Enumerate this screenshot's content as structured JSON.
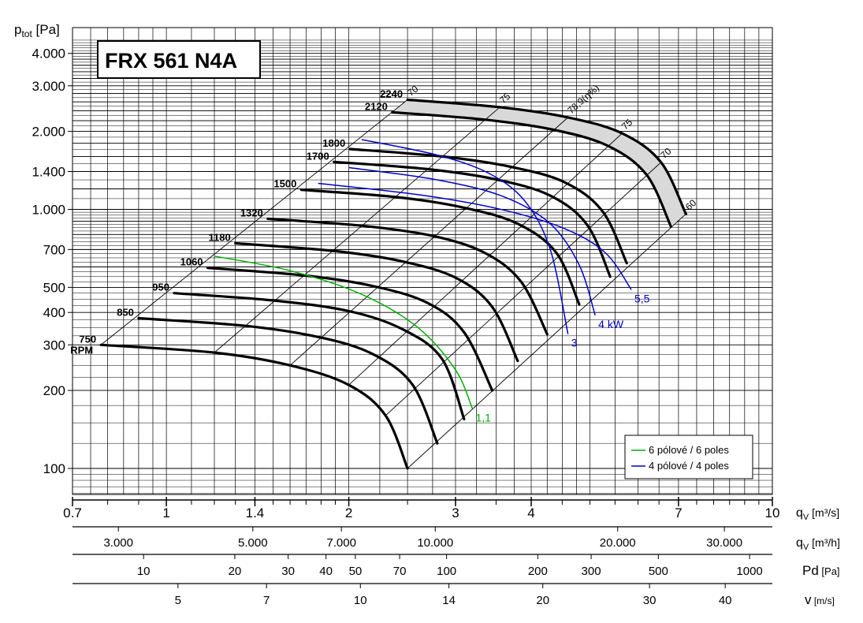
{
  "chart_data": {
    "type": "line",
    "title": "FRX 561 N4A",
    "y_axis": {
      "label_main": "p",
      "label_sub": "tot",
      "label_unit": " [Pa]",
      "scale": "log",
      "range": [
        70,
        5000
      ],
      "ticks": [
        {
          "v": 4000,
          "label": "4.000"
        },
        {
          "v": 3000,
          "label": "3.000"
        },
        {
          "v": 2000,
          "label": "2.000"
        },
        {
          "v": 1400,
          "label": "1.400"
        },
        {
          "v": 1000,
          "label": "1.000"
        },
        {
          "v": 700,
          "label": "700"
        },
        {
          "v": 500,
          "label": "500"
        },
        {
          "v": 400,
          "label": "400"
        },
        {
          "v": 300,
          "label": "300"
        },
        {
          "v": 200,
          "label": "200"
        },
        {
          "v": 100,
          "label": "100"
        }
      ]
    },
    "x_axis": {
      "label_main": "q",
      "label_sub": "V",
      "label_unit": " [m³/s]",
      "scale": "log",
      "range": [
        0.7,
        10
      ],
      "ticks": [
        {
          "v": 0.7,
          "label": "0.7"
        },
        {
          "v": 1,
          "label": "1"
        },
        {
          "v": 1.4,
          "label": "1.4"
        },
        {
          "v": 2,
          "label": "2"
        },
        {
          "v": 3,
          "label": "3"
        },
        {
          "v": 4,
          "label": "4"
        },
        {
          "v": 7,
          "label": "7"
        },
        {
          "v": 10,
          "label": "10"
        }
      ]
    },
    "x_axis_h": {
      "label_main": "q",
      "label_sub": "V",
      "label_unit": " [m³/h]",
      "ticks": [
        {
          "v": 3000,
          "label": "3.000"
        },
        {
          "v": 5000,
          "label": "5.000"
        },
        {
          "v": 7000,
          "label": "7.000"
        },
        {
          "v": 10000,
          "label": "10.000"
        },
        {
          "v": 20000,
          "label": "20.000"
        },
        {
          "v": 30000,
          "label": "30.000"
        }
      ]
    },
    "x_axis_pd": {
      "label_main": "Pd",
      "label_unit": " [Pa]",
      "ticks": [
        {
          "v": 10,
          "label": "10"
        },
        {
          "v": 20,
          "label": "20"
        },
        {
          "v": 30,
          "label": "30"
        },
        {
          "v": 40,
          "label": "40"
        },
        {
          "v": 50,
          "label": "50"
        },
        {
          "v": 70,
          "label": "70"
        },
        {
          "v": 100,
          "label": "100"
        },
        {
          "v": 200,
          "label": "200"
        },
        {
          "v": 300,
          "label": "300"
        },
        {
          "v": 500,
          "label": "500"
        },
        {
          "v": 1000,
          "label": "1000"
        }
      ]
    },
    "x_axis_v": {
      "label_main": "v",
      "label_unit": " [m/s]",
      "ticks": [
        {
          "v": 5,
          "label": "5"
        },
        {
          "v": 7,
          "label": "7"
        },
        {
          "v": 10,
          "label": "10"
        },
        {
          "v": 14,
          "label": "14"
        },
        {
          "v": 20,
          "label": "20"
        },
        {
          "v": 30,
          "label": "30"
        },
        {
          "v": 40,
          "label": "40"
        }
      ]
    },
    "speed_curves": [
      {
        "rpm": "750",
        "unit": "RPM",
        "points": [
          [
            0.78,
            300
          ],
          [
            1.2,
            280
          ],
          [
            1.6,
            250
          ],
          [
            2.0,
            210
          ],
          [
            2.3,
            160
          ],
          [
            2.5,
            100
          ]
        ]
      },
      {
        "rpm": "850",
        "points": [
          [
            0.9,
            380
          ],
          [
            1.35,
            355
          ],
          [
            1.8,
            320
          ],
          [
            2.2,
            275
          ],
          [
            2.55,
            210
          ],
          [
            2.8,
            125
          ]
        ]
      },
      {
        "rpm": "950",
        "points": [
          [
            1.03,
            475
          ],
          [
            1.5,
            445
          ],
          [
            2.0,
            405
          ],
          [
            2.45,
            345
          ],
          [
            2.85,
            265
          ],
          [
            3.1,
            155
          ]
        ]
      },
      {
        "rpm": "1060",
        "points": [
          [
            1.17,
            595
          ],
          [
            1.7,
            555
          ],
          [
            2.2,
            505
          ],
          [
            2.7,
            435
          ],
          [
            3.1,
            335
          ],
          [
            3.45,
            200
          ]
        ]
      },
      {
        "rpm": "1180",
        "points": [
          [
            1.3,
            740
          ],
          [
            1.9,
            690
          ],
          [
            2.45,
            630
          ],
          [
            3.0,
            545
          ],
          [
            3.45,
            420
          ],
          [
            3.8,
            260
          ]
        ]
      },
      {
        "rpm": "1320",
        "points": [
          [
            1.47,
            920
          ],
          [
            2.1,
            865
          ],
          [
            2.75,
            790
          ],
          [
            3.35,
            680
          ],
          [
            3.85,
            525
          ],
          [
            4.25,
            330
          ]
        ]
      },
      {
        "rpm": "1500",
        "points": [
          [
            1.67,
            1190
          ],
          [
            2.4,
            1115
          ],
          [
            3.1,
            1015
          ],
          [
            3.8,
            880
          ],
          [
            4.4,
            680
          ],
          [
            4.8,
            430
          ]
        ]
      },
      {
        "rpm": "1700",
        "points": [
          [
            1.89,
            1525
          ],
          [
            2.7,
            1430
          ],
          [
            3.5,
            1305
          ],
          [
            4.3,
            1130
          ],
          [
            4.95,
            870
          ],
          [
            5.4,
            550
          ]
        ]
      },
      {
        "rpm": "1800",
        "points": [
          [
            2.01,
            1710
          ],
          [
            2.85,
            1600
          ],
          [
            3.7,
            1460
          ],
          [
            4.55,
            1270
          ],
          [
            5.25,
            980
          ],
          [
            5.75,
            620
          ]
        ]
      },
      {
        "rpm": "2120",
        "points": [
          [
            2.36,
            2370
          ],
          [
            3.35,
            2220
          ],
          [
            4.35,
            2030
          ],
          [
            5.35,
            1760
          ],
          [
            6.2,
            1360
          ],
          [
            6.8,
            860
          ]
        ]
      },
      {
        "rpm": "2240",
        "points": [
          [
            2.5,
            2650
          ],
          [
            3.55,
            2480
          ],
          [
            4.6,
            2265
          ],
          [
            5.65,
            1965
          ],
          [
            6.55,
            1520
          ],
          [
            7.2,
            960
          ]
        ]
      }
    ],
    "shaded_region": "operating area between 2120 and 2240 RPM",
    "efficiency_lines": [
      {
        "label": "70",
        "points": [
          [
            0.78,
            300
          ],
          [
            2.5,
            2650
          ]
        ]
      },
      {
        "label": "75",
        "points": [
          [
            1.2,
            280
          ],
          [
            3.55,
            2480
          ]
        ]
      },
      {
        "label": "78,9(η%)",
        "points": [
          [
            1.6,
            250
          ],
          [
            4.6,
            2265
          ]
        ]
      },
      {
        "label": "75",
        "points": [
          [
            2.0,
            210
          ],
          [
            5.65,
            1965
          ]
        ]
      },
      {
        "label": "70",
        "points": [
          [
            2.3,
            160
          ],
          [
            6.55,
            1520
          ]
        ]
      },
      {
        "label": "60",
        "points": [
          [
            2.5,
            100
          ],
          [
            7.2,
            960
          ]
        ]
      }
    ],
    "power_curves": [
      {
        "label": "1,1",
        "color": "#00b000",
        "points": [
          [
            1.2,
            660
          ],
          [
            1.6,
            580
          ],
          [
            2.1,
            470
          ],
          [
            2.6,
            350
          ],
          [
            3.0,
            240
          ],
          [
            3.2,
            170
          ]
        ]
      },
      {
        "label": "3",
        "color": "#0000cc",
        "points": [
          [
            2.1,
            1860
          ],
          [
            2.8,
            1620
          ],
          [
            3.4,
            1380
          ],
          [
            3.9,
            1080
          ],
          [
            4.3,
            700
          ],
          [
            4.6,
            330
          ]
        ]
      },
      {
        "label": "4 kW",
        "color": "#0000cc",
        "points": [
          [
            2.0,
            1450
          ],
          [
            2.8,
            1300
          ],
          [
            3.6,
            1120
          ],
          [
            4.3,
            880
          ],
          [
            4.8,
            610
          ],
          [
            5.1,
            390
          ]
        ]
      },
      {
        "label": "5,5",
        "color": "#0000cc",
        "points": [
          [
            1.78,
            1260
          ],
          [
            2.6,
            1140
          ],
          [
            3.5,
            1010
          ],
          [
            4.5,
            850
          ],
          [
            5.3,
            680
          ],
          [
            5.85,
            490
          ]
        ]
      }
    ],
    "legend": {
      "position": "bottom-right",
      "items": [
        {
          "label": "6 pólové / 6 poles",
          "color": "#00b000"
        },
        {
          "label": "4 pólové / 4 poles",
          "color": "#0000cc"
        }
      ]
    },
    "grid": true
  }
}
